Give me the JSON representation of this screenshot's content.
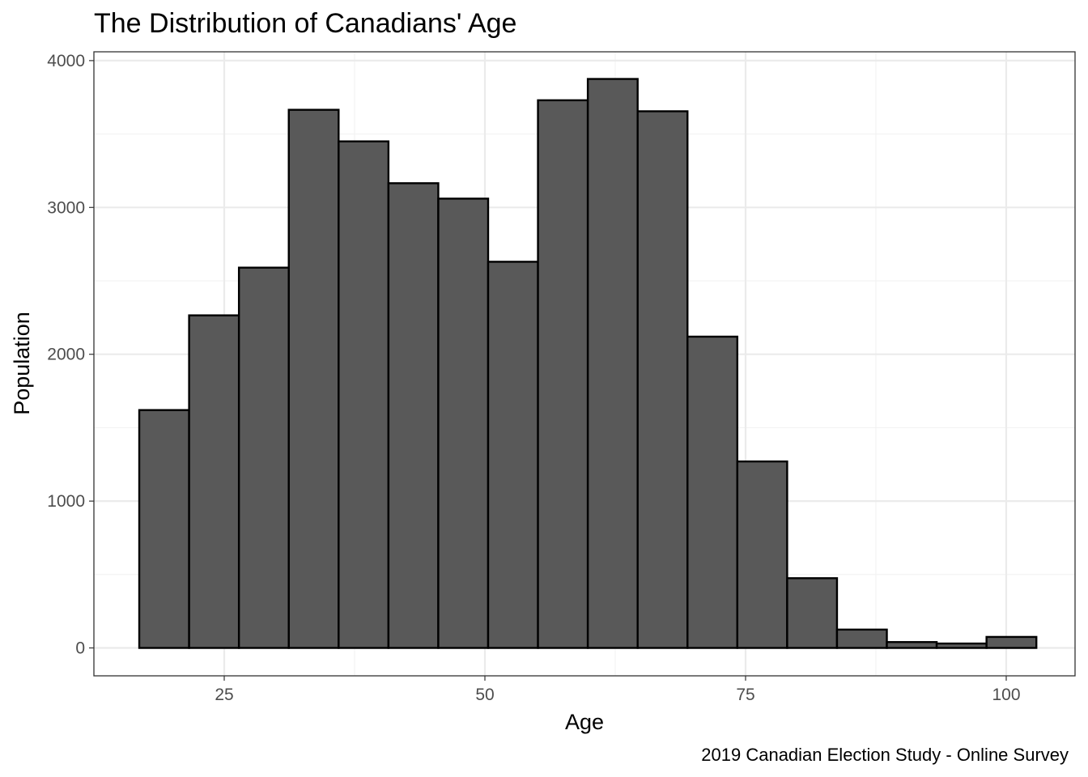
{
  "chart_data": {
    "type": "bar",
    "title": "The Distribution of Canadians' Age",
    "xlabel": "Age",
    "ylabel": "Population",
    "caption": "2019 Canadian Election Study - Online Survey",
    "xlim": [
      12.5,
      106.6
    ],
    "ylim": [
      -190,
      4060
    ],
    "x_ticks": [
      25,
      50,
      75,
      100
    ],
    "x_tick_labels": [
      "25",
      "50",
      "75",
      "100"
    ],
    "y_ticks": [
      0,
      1000,
      2000,
      3000,
      4000
    ],
    "y_tick_labels": [
      "0",
      "1000",
      "2000",
      "3000",
      "4000"
    ],
    "grid": true,
    "theme": "bw",
    "bar_fill": "#595959",
    "bar_outline": "#000000",
    "bins": [
      {
        "x0": 16.85,
        "x1": 21.63,
        "count": 1620
      },
      {
        "x0": 21.63,
        "x1": 26.41,
        "count": 2265
      },
      {
        "x0": 26.41,
        "x1": 31.19,
        "count": 2590
      },
      {
        "x0": 31.19,
        "x1": 35.97,
        "count": 3665
      },
      {
        "x0": 35.97,
        "x1": 40.75,
        "count": 3450
      },
      {
        "x0": 40.75,
        "x1": 45.53,
        "count": 3165
      },
      {
        "x0": 45.53,
        "x1": 50.31,
        "count": 3060
      },
      {
        "x0": 50.31,
        "x1": 55.09,
        "count": 2630
      },
      {
        "x0": 55.09,
        "x1": 59.87,
        "count": 3730
      },
      {
        "x0": 59.87,
        "x1": 64.65,
        "count": 3875
      },
      {
        "x0": 64.65,
        "x1": 69.43,
        "count": 3655
      },
      {
        "x0": 69.43,
        "x1": 74.21,
        "count": 2120
      },
      {
        "x0": 74.21,
        "x1": 78.99,
        "count": 1270
      },
      {
        "x0": 78.99,
        "x1": 83.77,
        "count": 475
      },
      {
        "x0": 83.77,
        "x1": 88.55,
        "count": 125
      },
      {
        "x0": 88.55,
        "x1": 93.33,
        "count": 40
      },
      {
        "x0": 93.33,
        "x1": 98.11,
        "count": 30
      },
      {
        "x0": 98.11,
        "x1": 102.89,
        "count": 75
      }
    ]
  }
}
